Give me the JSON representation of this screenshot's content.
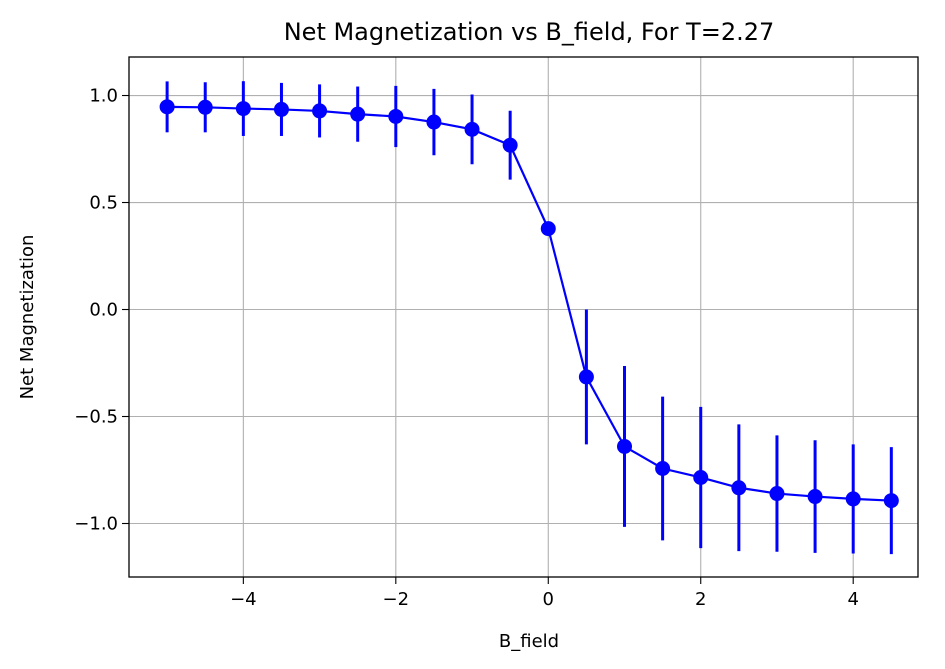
{
  "chart_data": {
    "type": "line",
    "title": "Net Magnetization vs B_field, For T=2.27",
    "xlabel": "B_field",
    "ylabel": "Net Magnetization",
    "xlim": [
      -5.5,
      4.85
    ],
    "ylim": [
      -1.25,
      1.18
    ],
    "grid": true,
    "color": "#0000ff",
    "x_ticks": [
      -4,
      -2,
      0,
      2,
      4
    ],
    "x_tick_labels": [
      "−4",
      "−2",
      "0",
      "2",
      "4"
    ],
    "y_ticks": [
      1.0,
      0.5,
      0.0,
      -0.5,
      -1.0
    ],
    "y_tick_labels": [
      "1.0",
      "0.5",
      "0.0",
      "−0.5",
      "−1.0"
    ],
    "series": [
      {
        "x": [
          -5.0,
          -4.5,
          -4.0,
          -3.5,
          -3.0,
          -2.5,
          -2.0,
          -1.5,
          -1.0,
          -0.5,
          0.0,
          0.5,
          1.0,
          1.5,
          2.0,
          2.5,
          3.0,
          3.5,
          4.0,
          4.5
        ],
        "y": [
          0.947,
          0.945,
          0.939,
          0.935,
          0.928,
          0.913,
          0.902,
          0.876,
          0.842,
          0.768,
          0.378,
          -0.315,
          -0.64,
          -0.743,
          -0.785,
          -0.833,
          -0.86,
          -0.874,
          -0.885,
          -0.893
        ],
        "yerr": [
          0.119,
          0.117,
          0.128,
          0.124,
          0.124,
          0.129,
          0.143,
          0.155,
          0.163,
          0.161,
          0.0,
          0.315,
          0.376,
          0.336,
          0.33,
          0.296,
          0.272,
          0.263,
          0.255,
          0.25
        ]
      }
    ]
  }
}
